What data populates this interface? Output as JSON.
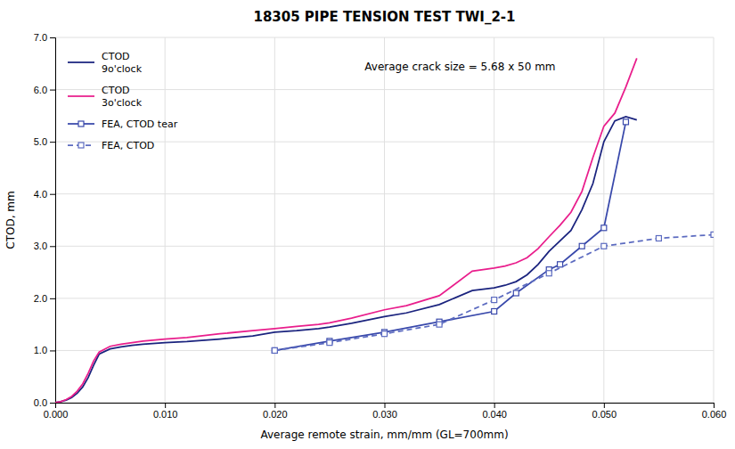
{
  "chart_data": {
    "type": "line",
    "title": "18305 PIPE TENSION TEST TWI_2-1",
    "x_label": "Average remote strain, mm/mm (GL=700mm)",
    "y_label": "CTOD, mm",
    "annotation": "Average crack size = 5.68 x 50 mm",
    "xlim": [
      0.0,
      0.06
    ],
    "ylim": [
      0.0,
      7.0
    ],
    "xticks": [
      {
        "value": 0.0,
        "label": "0.000"
      },
      {
        "value": 0.01,
        "label": "0.010"
      },
      {
        "value": 0.02,
        "label": "0.020"
      },
      {
        "value": 0.03,
        "label": "0.030"
      },
      {
        "value": 0.04,
        "label": "0.040"
      },
      {
        "value": 0.05,
        "label": "0.050"
      },
      {
        "value": 0.06,
        "label": "0.060"
      }
    ],
    "yticks": [
      {
        "value": 0.0,
        "label": "0.0"
      },
      {
        "value": 1.0,
        "label": "1.0"
      },
      {
        "value": 2.0,
        "label": "2.0"
      },
      {
        "value": 3.0,
        "label": "3.0"
      },
      {
        "value": 4.0,
        "label": "4.0"
      },
      {
        "value": 5.0,
        "label": "5.0"
      },
      {
        "value": 6.0,
        "label": "6.0"
      },
      {
        "value": 7.0,
        "label": "7.0"
      }
    ],
    "grid": true,
    "legend": "upper left",
    "series": [
      {
        "name": "CTOD\n9o'clock",
        "color": "#1a237e",
        "line_style": "solid",
        "x": [
          0.0,
          0.0005,
          0.001,
          0.0015,
          0.002,
          0.0025,
          0.003,
          0.0035,
          0.004,
          0.005,
          0.006,
          0.007,
          0.008,
          0.01,
          0.012,
          0.015,
          0.018,
          0.02,
          0.022,
          0.024,
          0.025,
          0.027,
          0.03,
          0.032,
          0.035,
          0.038,
          0.04,
          0.041,
          0.042,
          0.043,
          0.044,
          0.045,
          0.046,
          0.047,
          0.048,
          0.049,
          0.05,
          0.051,
          0.052,
          0.053
        ],
        "values": [
          0.0,
          0.02,
          0.05,
          0.1,
          0.18,
          0.3,
          0.48,
          0.72,
          0.93,
          1.03,
          1.07,
          1.1,
          1.12,
          1.15,
          1.17,
          1.22,
          1.28,
          1.35,
          1.38,
          1.42,
          1.45,
          1.52,
          1.65,
          1.72,
          1.88,
          2.15,
          2.2,
          2.25,
          2.32,
          2.45,
          2.65,
          2.9,
          3.1,
          3.3,
          3.7,
          4.2,
          5.0,
          5.4,
          5.48,
          5.42
        ]
      },
      {
        "name": "CTOD\n3o'clock",
        "color": "#e91e8c",
        "line_style": "solid",
        "x": [
          0.0,
          0.0005,
          0.001,
          0.0015,
          0.002,
          0.0025,
          0.003,
          0.0035,
          0.004,
          0.005,
          0.006,
          0.007,
          0.008,
          0.01,
          0.012,
          0.015,
          0.018,
          0.02,
          0.022,
          0.024,
          0.025,
          0.027,
          0.03,
          0.032,
          0.035,
          0.038,
          0.04,
          0.041,
          0.042,
          0.043,
          0.044,
          0.045,
          0.046,
          0.047,
          0.048,
          0.049,
          0.05,
          0.051,
          0.052,
          0.053
        ],
        "values": [
          0.0,
          0.02,
          0.06,
          0.12,
          0.22,
          0.36,
          0.56,
          0.8,
          0.97,
          1.08,
          1.12,
          1.15,
          1.18,
          1.22,
          1.25,
          1.32,
          1.38,
          1.42,
          1.46,
          1.5,
          1.53,
          1.62,
          1.78,
          1.86,
          2.05,
          2.52,
          2.58,
          2.62,
          2.68,
          2.78,
          2.95,
          3.18,
          3.4,
          3.65,
          4.05,
          4.7,
          5.3,
          5.55,
          6.05,
          6.6
        ]
      },
      {
        "name": "FEA, CTOD tear",
        "color": "#3949ab",
        "line_style": "solid",
        "marker": "square",
        "x": [
          0.02,
          0.025,
          0.03,
          0.035,
          0.04,
          0.042,
          0.045,
          0.046,
          0.048,
          0.05,
          0.052
        ],
        "values": [
          1.0,
          1.18,
          1.35,
          1.55,
          1.75,
          2.1,
          2.55,
          2.65,
          3.0,
          3.35,
          5.38
        ]
      },
      {
        "name": "FEA, CTOD",
        "color": "#5c6bc0",
        "line_style": "dashed",
        "marker": "square",
        "x": [
          0.02,
          0.025,
          0.03,
          0.035,
          0.04,
          0.045,
          0.05,
          0.055,
          0.06
        ],
        "values": [
          1.0,
          1.15,
          1.32,
          1.5,
          1.97,
          2.48,
          3.0,
          3.15,
          3.22
        ]
      }
    ]
  }
}
